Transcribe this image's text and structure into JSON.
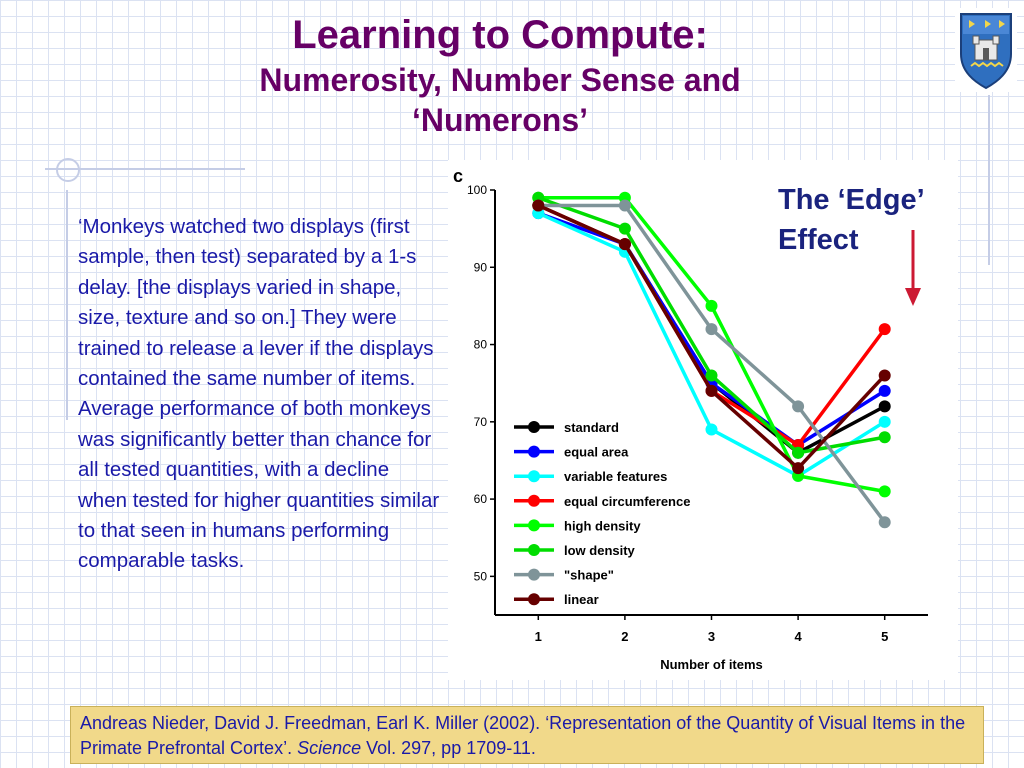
{
  "slide": {
    "title": "Learning to Compute:",
    "subtitle_line1": "Numerosity, Number Sense and",
    "subtitle_line2": "‘Numerons’",
    "body": "‘Monkeys watched two displays (first sample, then test) separated by a 1-s delay. [the displays varied in shape, size, texture and so on.] They were trained to release a lever if the displays contained the same number of items. Average performance of both monkeys was significantly better than chance for all tested quantities, with a decline when tested for higher quantities similar to that seen in humans performing comparable tasks.",
    "edge_line1": "The ‘Edge’",
    "edge_line2": "Effect",
    "citation": {
      "part1": "Andreas Nieder, David J. Freedman, Earl K. Miller (2002).  ‘Representation of the Quantity of Visual Items in the Primate Prefrontal Cortex’.  ",
      "journal": "Science",
      "part2": " Vol. 297, pp 1709-11."
    },
    "colors": {
      "title": "#660066",
      "text": "#1a1aa8",
      "edge_text": "#1a237e",
      "arrow": "#cc1a33",
      "citation_bg": "#f1d98a"
    }
  },
  "chart_data": {
    "type": "line",
    "panel_label": "c",
    "x": [
      1,
      2,
      3,
      4,
      5
    ],
    "xlabel": "Number of items",
    "ylabel": "",
    "ylim": [
      45,
      100
    ],
    "yticks": [
      50,
      60,
      70,
      80,
      90,
      100
    ],
    "grid": false,
    "legend_position": "bottom-left",
    "series": [
      {
        "name": "standard",
        "color": "#000000",
        "values": [
          98,
          93,
          75,
          66,
          72
        ]
      },
      {
        "name": "equal area",
        "color": "#0000ff",
        "values": [
          97,
          93,
          75,
          67,
          74
        ]
      },
      {
        "name": "variable features",
        "color": "#00ffff",
        "values": [
          97,
          92,
          69,
          63,
          70
        ]
      },
      {
        "name": "equal circumference",
        "color": "#ff0000",
        "values": [
          98,
          93,
          74,
          67,
          82
        ]
      },
      {
        "name": "high density",
        "color": "#00ff00",
        "values": [
          99,
          99,
          85,
          63,
          61
        ]
      },
      {
        "name": "low density",
        "color": "#00dd00",
        "values": [
          99,
          95,
          76,
          66,
          68
        ]
      },
      {
        "name": "\"shape\"",
        "color": "#7f9499",
        "values": [
          98,
          98,
          82,
          72,
          57
        ]
      },
      {
        "name": "linear",
        "color": "#660000",
        "values": [
          98,
          93,
          74,
          64,
          76
        ]
      }
    ]
  }
}
